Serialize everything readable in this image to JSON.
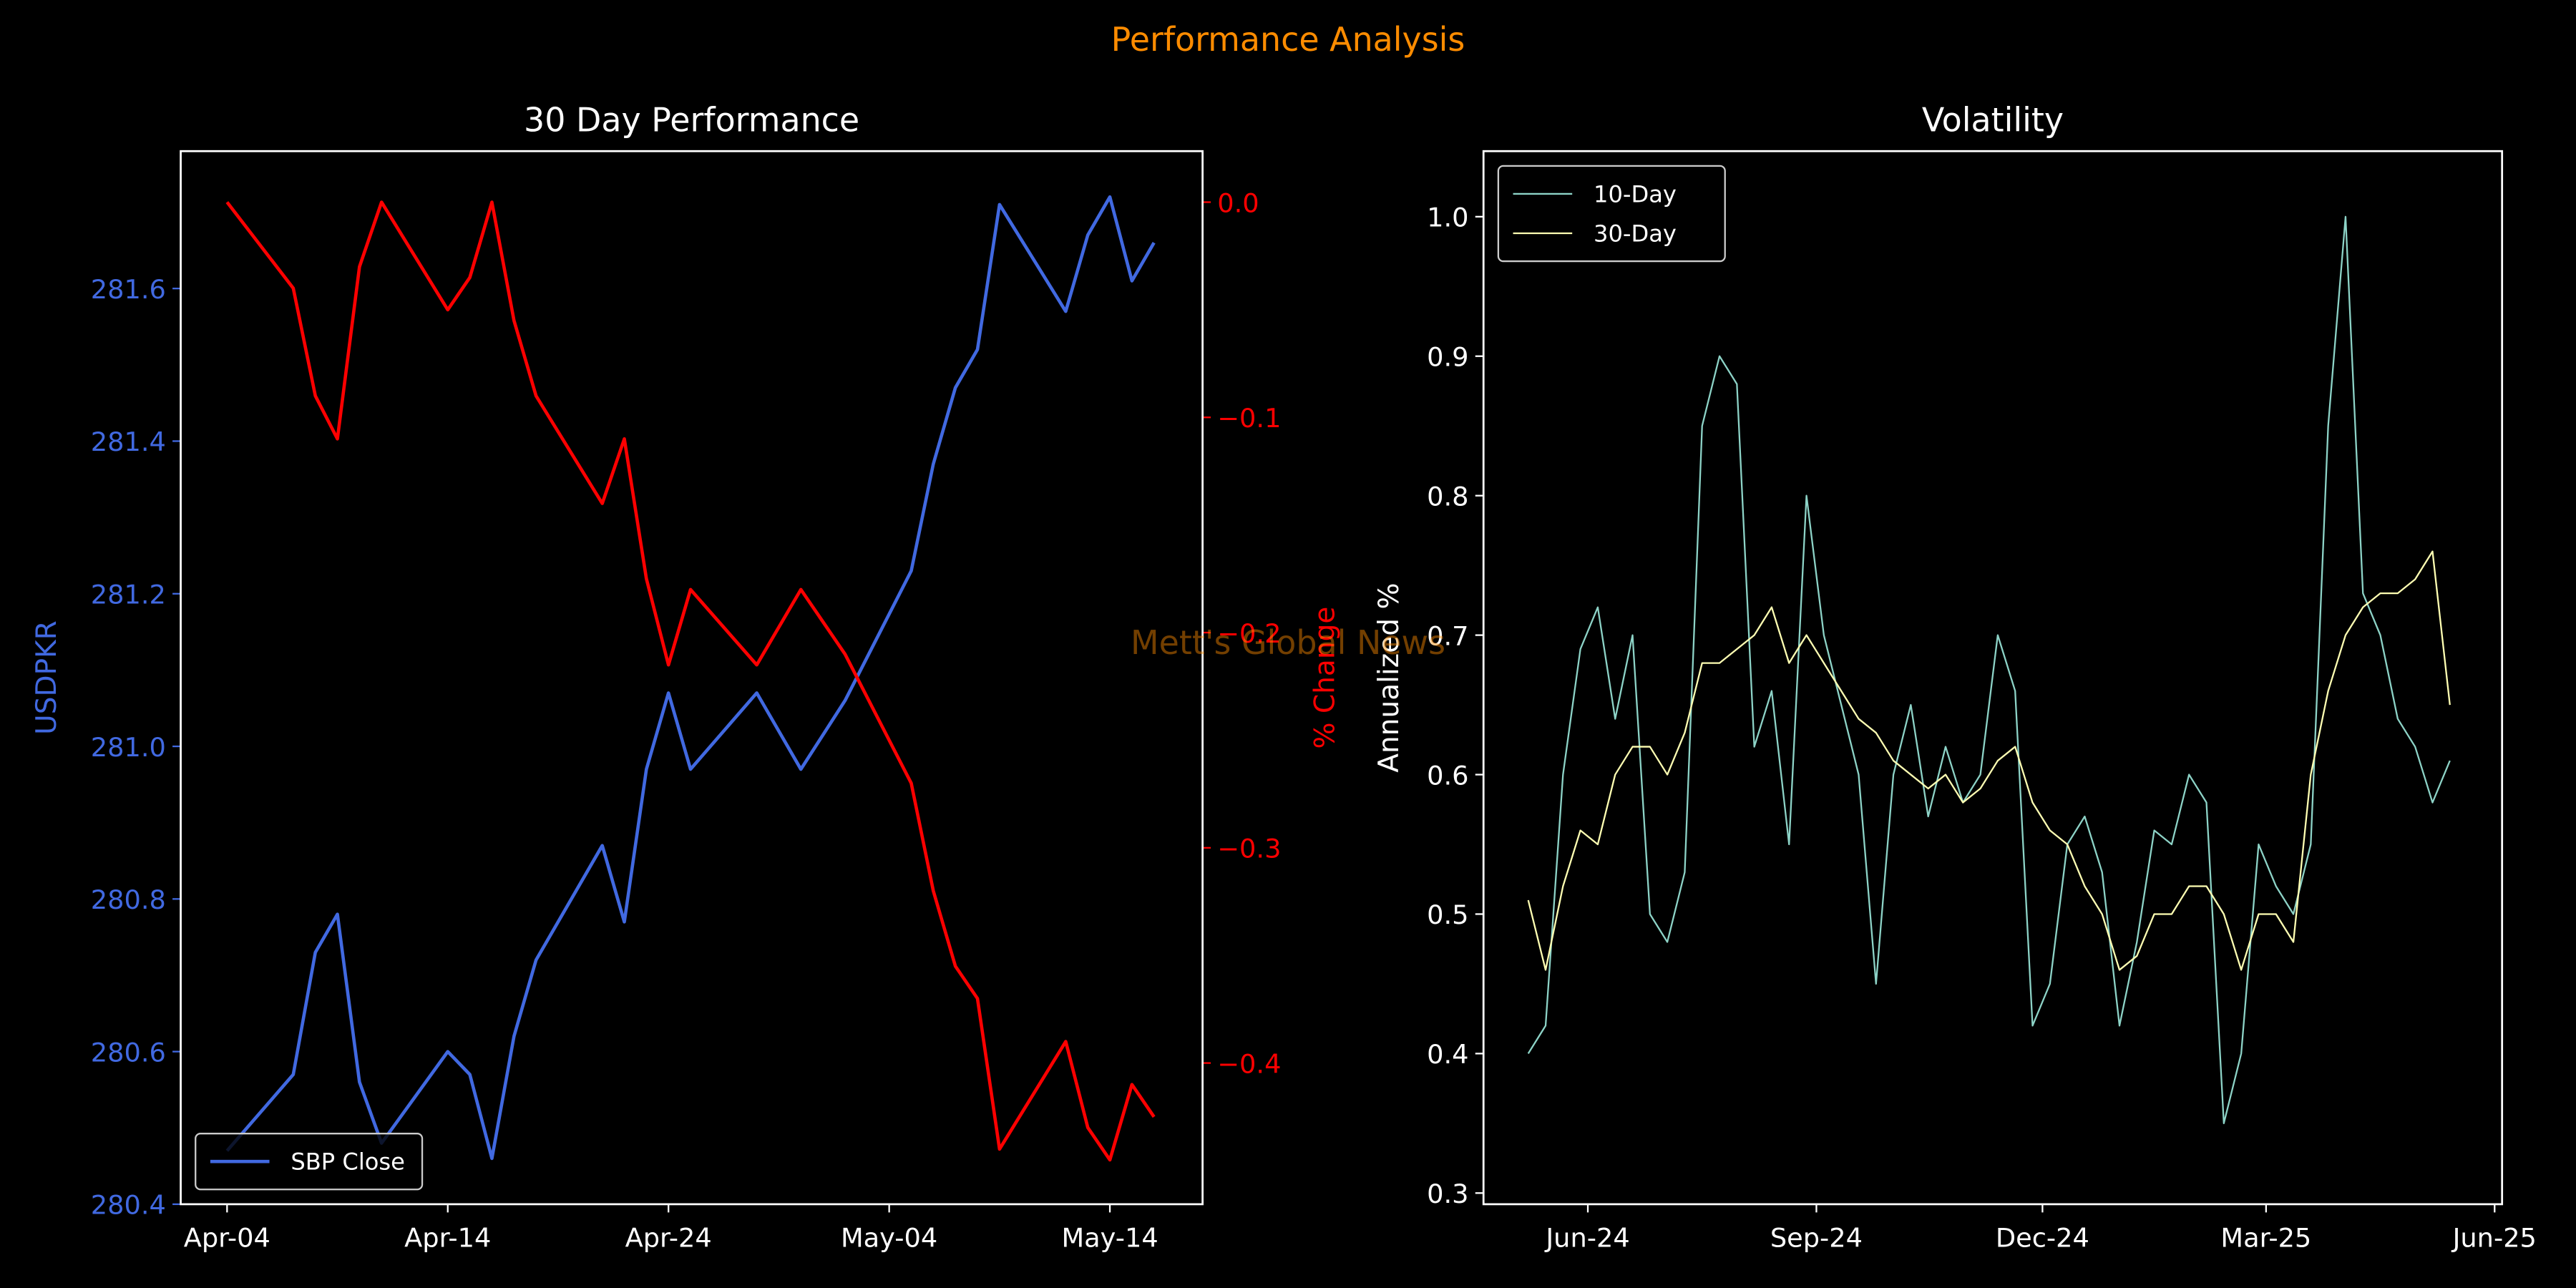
{
  "title": "Performance Analysis",
  "watermark": "Mett's Global News",
  "chart_data": [
    {
      "type": "line",
      "title": "30 Day Performance",
      "ylabel": "USDPKR",
      "y2label": "% Change",
      "ycolor": "#4169e1",
      "y2color": "#ff0000",
      "legend": "lower left",
      "x": [
        0,
        3,
        4,
        5,
        6,
        7,
        10,
        11,
        12,
        13,
        14,
        17,
        18,
        19,
        20,
        21,
        24,
        26,
        28,
        31,
        32,
        33,
        34,
        35,
        38,
        39,
        40,
        41,
        42
      ],
      "xlim": [
        -2.1,
        44.2
      ],
      "xticks": [
        {
          "value": 0,
          "label": "Apr-04"
        },
        {
          "value": 10,
          "label": "Apr-14"
        },
        {
          "value": 20,
          "label": "Apr-24"
        },
        {
          "value": 30,
          "label": "May-04"
        },
        {
          "value": 40,
          "label": "May-14"
        }
      ],
      "ylim": [
        280.4,
        281.78
      ],
      "yticks": [
        280.4,
        280.6,
        280.8,
        {
          "value": 281,
          "label": "281.0"
        },
        281.2,
        281.4,
        281.6
      ],
      "y2lim": [
        -0.4656,
        0.0237
      ],
      "y2ticks": [
        {
          "value": -0.4,
          "label": "−0.4"
        },
        {
          "value": -0.3,
          "label": "−0.3"
        },
        {
          "value": -0.2,
          "label": "−0.2"
        },
        {
          "value": -0.1,
          "label": "−0.1"
        },
        {
          "value": 0,
          "label": "0.0"
        }
      ],
      "series": [
        {
          "name": "SBP Close",
          "color": "#4169e1",
          "values": [
            280.47,
            280.57,
            280.73,
            280.78,
            280.56,
            280.48,
            280.6,
            280.57,
            280.46,
            280.62,
            280.72,
            280.87,
            280.77,
            280.97,
            281.07,
            280.97,
            281.07,
            280.97,
            281.06,
            281.23,
            281.37,
            281.47,
            281.52,
            281.71,
            281.57,
            281.67,
            281.72,
            281.61,
            281.66
          ]
        },
        {
          "color": "#ff0000",
          "axis": "y2",
          "values": [
            0,
            -0.04,
            -0.09,
            -0.11,
            -0.03,
            0,
            -0.05,
            -0.035,
            0,
            -0.055,
            -0.09,
            -0.14,
            -0.11,
            -0.175,
            -0.215,
            -0.18,
            -0.215,
            -0.18,
            -0.21,
            -0.27,
            -0.32,
            -0.355,
            -0.37,
            -0.44,
            -0.39,
            -0.43,
            -0.445,
            -0.41,
            -0.425
          ]
        }
      ]
    },
    {
      "type": "line",
      "title": "Volatility",
      "ylabel": "Annualized %",
      "legend": "upper left",
      "x": [
        -24,
        -17,
        -10,
        -3,
        4,
        11,
        18,
        25,
        32,
        39,
        46,
        53,
        60,
        67,
        74,
        81,
        88,
        95,
        102,
        109,
        116,
        123,
        130,
        137,
        144,
        151,
        158,
        165,
        172,
        179,
        186,
        193,
        200,
        207,
        214,
        221,
        228,
        235,
        242,
        249,
        256,
        263,
        270,
        277,
        284,
        291,
        298,
        305,
        312,
        319,
        326,
        333,
        340,
        347
      ],
      "xlim": [
        -42,
        368
      ],
      "xticks": [
        {
          "value": 0,
          "label": "Jun-24"
        },
        {
          "value": 92,
          "label": "Sep-24"
        },
        {
          "value": 183,
          "label": "Dec-24"
        },
        {
          "value": 273,
          "label": "Mar-25"
        },
        {
          "value": 365,
          "label": "Jun-25"
        }
      ],
      "ylim": [
        0.292,
        1.047
      ],
      "yticks": [
        0.3,
        0.4,
        0.5,
        0.6,
        0.7,
        0.8,
        0.9,
        {
          "value": 1,
          "label": "1.0"
        }
      ],
      "series": [
        {
          "name": "10-Day",
          "color": "#8dd3c7",
          "values": [
            0.4,
            0.42,
            0.6,
            0.69,
            0.72,
            0.64,
            0.7,
            0.5,
            0.48,
            0.53,
            0.85,
            0.9,
            0.88,
            0.62,
            0.66,
            0.55,
            0.8,
            0.7,
            0.65,
            0.6,
            0.45,
            0.6,
            0.65,
            0.57,
            0.62,
            0.58,
            0.6,
            0.7,
            0.66,
            0.42,
            0.45,
            0.55,
            0.57,
            0.53,
            0.42,
            0.48,
            0.56,
            0.55,
            0.6,
            0.58,
            0.35,
            0.4,
            0.55,
            0.52,
            0.5,
            0.55,
            0.85,
            1.0,
            0.73,
            0.7,
            0.64,
            0.62,
            0.58,
            0.61
          ]
        },
        {
          "name": "30-Day",
          "color": "#ffffb3",
          "values": [
            0.51,
            0.46,
            0.52,
            0.56,
            0.55,
            0.6,
            0.62,
            0.62,
            0.6,
            0.63,
            0.68,
            0.68,
            0.69,
            0.7,
            0.72,
            0.68,
            0.7,
            0.68,
            0.66,
            0.64,
            0.63,
            0.61,
            0.6,
            0.59,
            0.6,
            0.58,
            0.59,
            0.61,
            0.62,
            0.58,
            0.56,
            0.55,
            0.52,
            0.5,
            0.46,
            0.47,
            0.5,
            0.5,
            0.52,
            0.52,
            0.5,
            0.46,
            0.5,
            0.5,
            0.48,
            0.6,
            0.66,
            0.7,
            0.72,
            0.73,
            0.73,
            0.74,
            0.76,
            0.65
          ]
        }
      ]
    }
  ]
}
